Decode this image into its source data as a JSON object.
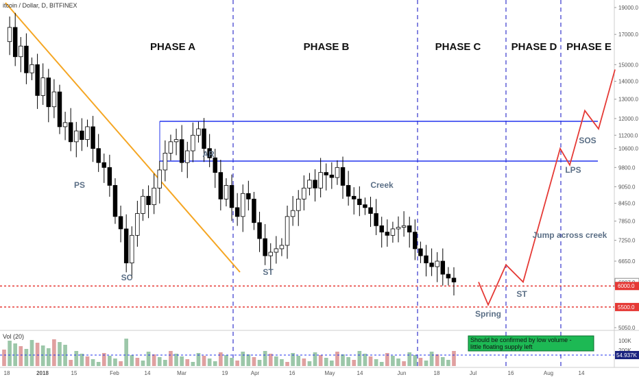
{
  "chart_data": {
    "type": "candlestick",
    "title": "itcoin / Dollar, D, BITFINEX",
    "y_axis": {
      "ticks": [
        "19000.0",
        "17000.0",
        "15000.0",
        "14000.0",
        "13000.0",
        "12000.0",
        "11200.0",
        "10600.0",
        "9800.0",
        "9050.0",
        "8450.0",
        "7850.0",
        "7250.0",
        "6650.0",
        "6087.9",
        "5050.0"
      ],
      "range": [
        5000,
        20000
      ],
      "scale": "log"
    },
    "x_axis": {
      "ticks": [
        "18",
        "2018",
        "15",
        "Feb",
        "14",
        "Mar",
        "19",
        "Apr",
        "16",
        "May",
        "14",
        "Jun",
        "18",
        "Jul",
        "16",
        "Aug",
        "14"
      ]
    },
    "phases": [
      "PHASE A",
      "PHASE B",
      "PHASE C",
      "PHASE D",
      "PHASE E"
    ],
    "annotations": [
      "PS",
      "SC",
      "AR",
      "ST",
      "Creek",
      "Spring",
      "ST",
      "Jump across creek",
      "LPS",
      "SOS"
    ],
    "price_levels": [
      {
        "label": "6000.0",
        "color": "#e53935"
      },
      {
        "label": "5500.0",
        "color": "#e53935"
      },
      {
        "label": "6087.9",
        "color": "#555555"
      }
    ],
    "projected_path": [
      6100,
      5550,
      6550,
      6100,
      10600,
      9900,
      12400,
      11500,
      14700
    ],
    "price_series": [
      16500,
      17500,
      15500,
      16200,
      14500,
      15000,
      13200,
      14200,
      12600,
      13400,
      11600,
      11800,
      10900,
      11400,
      11000,
      11600,
      10600,
      10000,
      9800,
      9100,
      8000,
      7600,
      6600,
      7400,
      8100,
      8700,
      8400,
      9000,
      9700,
      10400,
      10900,
      11000,
      10000,
      10500,
      11200,
      11500,
      10600,
      10200,
      9600,
      8600,
      9100,
      8300,
      8000,
      8800,
      8600,
      7800,
      7300,
      6800,
      6900,
      7000,
      7100,
      8000,
      8200,
      8600,
      9000,
      9300,
      9000,
      9600,
      9500,
      9400,
      9800,
      9100,
      8700,
      8600,
      8400,
      8300,
      8100,
      7700,
      7500,
      7400,
      7600,
      7650,
      7700,
      7500,
      7000,
      6800,
      6600,
      6500,
      6650,
      6300,
      6200,
      6100
    ],
    "volume": {
      "label": "Vol (20)",
      "ticks": [
        "200K",
        "100K"
      ],
      "current": "54.937K"
    },
    "note": {
      "lines": [
        "Should be confirmed by low volume -",
        "little floating supply left"
      ],
      "fill": "#1db954"
    },
    "colors": {
      "trendline": "#f5a623",
      "resistance": "#2233ee",
      "phase_divider": "#3333cc",
      "projection": "#e53935",
      "candle": "#000000"
    }
  }
}
